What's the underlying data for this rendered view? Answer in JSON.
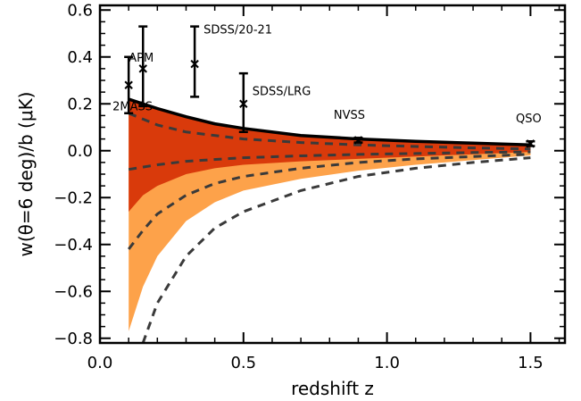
{
  "chart_data": {
    "type": "area",
    "xlabel": "redshift z",
    "ylabel": "w(θ=6 deg)/b (μK)",
    "xlim": [
      0.0,
      1.62
    ],
    "ylim": [
      -0.82,
      0.62
    ],
    "x_ticks": [
      0.0,
      0.5,
      1.0,
      1.5
    ],
    "x_tick_labels": [
      "0.0",
      "0.5",
      "1.0",
      "1.5"
    ],
    "y_ticks": [
      -0.8,
      -0.6,
      -0.4,
      -0.2,
      0.0,
      0.2,
      0.4,
      0.6
    ],
    "y_tick_labels": [
      "−0.8",
      "−0.6",
      "−0.4",
      "−0.2",
      "0.0",
      "0.2",
      "0.4",
      "0.6"
    ],
    "grid": false,
    "legend": "none",
    "colors": {
      "dark_band": "#d93a0b",
      "light_band": "#fda24a",
      "upper_curve": "#000000",
      "dashed": "#3a3a3a",
      "points": "#000000"
    },
    "bands": {
      "x": [
        0.1,
        0.15,
        0.2,
        0.3,
        0.4,
        0.5,
        0.7,
        0.9,
        1.1,
        1.3,
        1.5
      ],
      "upper": [
        0.22,
        0.2,
        0.18,
        0.145,
        0.115,
        0.095,
        0.065,
        0.05,
        0.04,
        0.032,
        0.025
      ],
      "dark_lower": [
        -0.26,
        -0.19,
        -0.15,
        -0.1,
        -0.075,
        -0.06,
        -0.045,
        -0.035,
        -0.025,
        -0.015,
        -0.005
      ],
      "light_lower": [
        -0.77,
        -0.58,
        -0.45,
        -0.3,
        -0.22,
        -0.17,
        -0.12,
        -0.085,
        -0.06,
        -0.04,
        -0.02
      ]
    },
    "dashed_curves": [
      {
        "x": [
          0.1,
          0.2,
          0.3,
          0.5,
          0.7,
          0.9,
          1.1,
          1.3,
          1.5
        ],
        "y": [
          0.16,
          0.11,
          0.08,
          0.05,
          0.035,
          0.025,
          0.018,
          0.012,
          0.008
        ]
      },
      {
        "x": [
          0.1,
          0.2,
          0.3,
          0.5,
          0.7,
          0.9,
          1.1,
          1.3,
          1.5
        ],
        "y": [
          -0.08,
          -0.06,
          -0.045,
          -0.03,
          -0.022,
          -0.016,
          -0.012,
          -0.008,
          -0.005
        ]
      },
      {
        "x": [
          0.1,
          0.15,
          0.2,
          0.3,
          0.4,
          0.5,
          0.7,
          0.9,
          1.1,
          1.3,
          1.5
        ],
        "y": [
          -0.42,
          -0.34,
          -0.27,
          -0.19,
          -0.14,
          -0.11,
          -0.075,
          -0.05,
          -0.035,
          -0.025,
          -0.015
        ]
      },
      {
        "x": [
          0.15,
          0.2,
          0.3,
          0.4,
          0.5,
          0.7,
          0.9,
          1.1,
          1.3,
          1.5
        ],
        "y": [
          -0.82,
          -0.65,
          -0.45,
          -0.33,
          -0.26,
          -0.17,
          -0.11,
          -0.075,
          -0.05,
          -0.03
        ]
      }
    ],
    "points": [
      {
        "label": "2MASS",
        "x": 0.1,
        "y": 0.28,
        "ylow": 0.16,
        "yhigh": 0.4
      },
      {
        "label": "APM",
        "x": 0.15,
        "y": 0.35,
        "ylow": 0.19,
        "yhigh": 0.53
      },
      {
        "label": "SDSS/20-21",
        "x": 0.33,
        "y": 0.37,
        "ylow": 0.23,
        "yhigh": 0.53
      },
      {
        "label": "SDSS/LRG",
        "x": 0.5,
        "y": 0.2,
        "ylow": 0.08,
        "yhigh": 0.33
      },
      {
        "label": "NVSS",
        "x": 0.9,
        "y": 0.045,
        "ylow": 0.035,
        "yhigh": 0.055
      },
      {
        "label": "QSO",
        "x": 1.5,
        "y": 0.03,
        "ylow": 0.02,
        "yhigh": 0.04
      }
    ]
  }
}
